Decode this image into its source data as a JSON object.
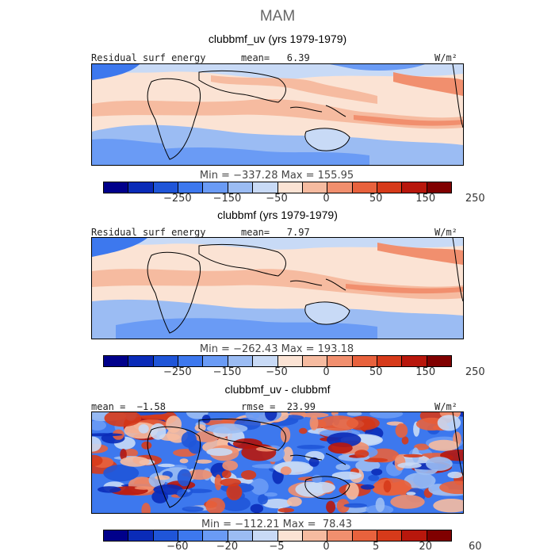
{
  "season": "MAM",
  "colors": [
    "#00008b",
    "#0a2bb8",
    "#1f55d8",
    "#3d78ee",
    "#6a9bf5",
    "#9bbcf3",
    "#c8daf6",
    "#fbe3d4",
    "#f6bba0",
    "#f18f6e",
    "#e8623d",
    "#d63a1a",
    "#b8170c",
    "#800000"
  ],
  "chart_data": [
    {
      "type": "heatmap",
      "title": "clubbmf_uv (yrs 1979-1979)",
      "left_label": "Residual surf energy",
      "center_label": "mean=   6.39",
      "units": "W/m²",
      "min_max": "Min = −337.28 Max = 155.95",
      "ticks": [
        "−250",
        "−150",
        "−50",
        "0",
        "50",
        "150",
        "250"
      ],
      "min": -337.28,
      "max": 155.95,
      "mean": 6.39
    },
    {
      "type": "heatmap",
      "title": "clubbmf (yrs 1979-1979)",
      "left_label": "Residual surf energy",
      "center_label": "mean=   7.97",
      "units": "W/m²",
      "min_max": "Min = −262.43 Max = 193.18",
      "ticks": [
        "−250",
        "−150",
        "−50",
        "0",
        "50",
        "150",
        "250"
      ],
      "min": -262.43,
      "max": 193.18,
      "mean": 7.97
    },
    {
      "type": "heatmap",
      "title": "clubbmf_uv - clubbmf",
      "left_label": "mean =  −1.58",
      "center_label": "rmse =  23.99",
      "units": "W/m²",
      "min_max": "Min = −112.21 Max =  78.43",
      "ticks": [
        "−60",
        "−20",
        "−5",
        "0",
        "5",
        "20",
        "60"
      ],
      "min": -112.21,
      "max": 78.43,
      "mean": -1.58,
      "rmse": 23.99
    }
  ]
}
